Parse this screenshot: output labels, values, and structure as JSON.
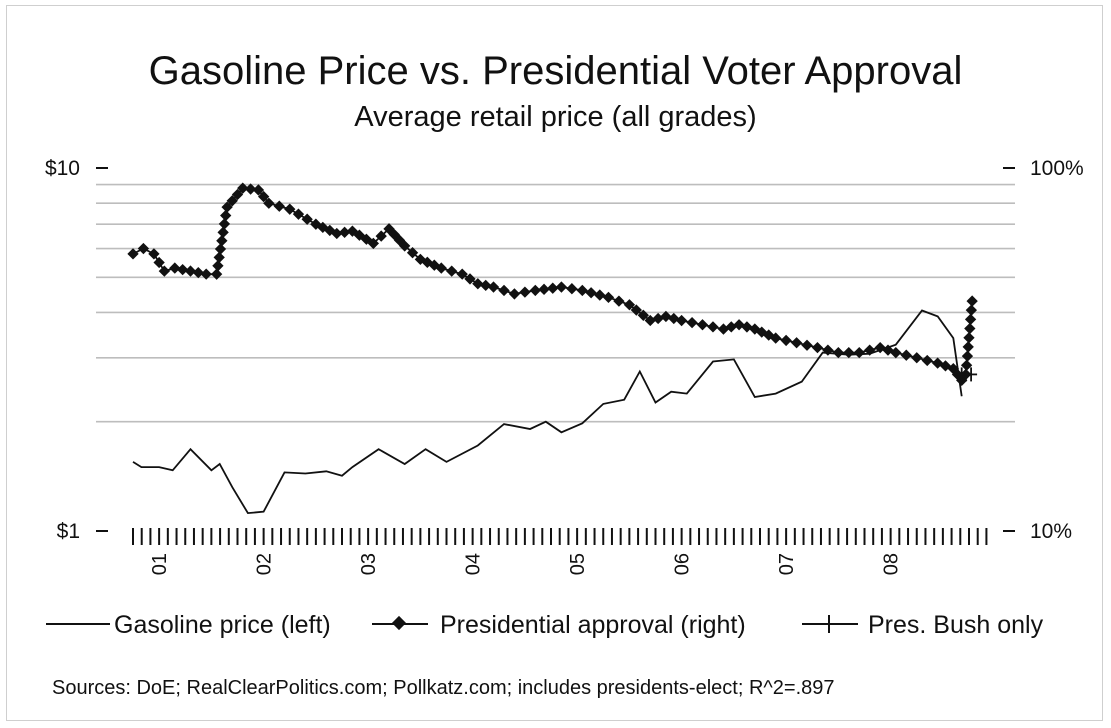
{
  "chart_data": {
    "type": "line",
    "title": "Gasoline Price vs. Presidential Voter Approval",
    "subtitle": "Average retail price (all grades)",
    "y_left": {
      "scale": "log",
      "range": [
        1,
        10
      ],
      "ticks": [
        "$1",
        "$10"
      ]
    },
    "y_right": {
      "scale": "log",
      "range": [
        10,
        100
      ],
      "ticks": [
        "10%",
        "100%"
      ]
    },
    "x": {
      "range": [
        2000.75,
        2008.95
      ],
      "year_labels": [
        "01",
        "02",
        "03",
        "04",
        "05",
        "06",
        "07",
        "08"
      ]
    },
    "grid": true,
    "legend_position": "bottom",
    "series": [
      {
        "name": "Gasoline price (left)",
        "axis": "left",
        "marker": "none",
        "points": [
          [
            2000.75,
            1.55
          ],
          [
            2000.83,
            1.5
          ],
          [
            2001.0,
            1.5
          ],
          [
            2001.13,
            1.47
          ],
          [
            2001.3,
            1.68
          ],
          [
            2001.5,
            1.47
          ],
          [
            2001.58,
            1.53
          ],
          [
            2001.7,
            1.32
          ],
          [
            2001.85,
            1.12
          ],
          [
            2002.0,
            1.13
          ],
          [
            2002.2,
            1.45
          ],
          [
            2002.4,
            1.44
          ],
          [
            2002.6,
            1.46
          ],
          [
            2002.75,
            1.42
          ],
          [
            2002.85,
            1.5
          ],
          [
            2003.1,
            1.68
          ],
          [
            2003.35,
            1.53
          ],
          [
            2003.55,
            1.68
          ],
          [
            2003.75,
            1.55
          ],
          [
            2004.05,
            1.72
          ],
          [
            2004.3,
            1.97
          ],
          [
            2004.55,
            1.91
          ],
          [
            2004.7,
            2.0
          ],
          [
            2004.85,
            1.87
          ],
          [
            2005.05,
            1.98
          ],
          [
            2005.25,
            2.24
          ],
          [
            2005.45,
            2.3
          ],
          [
            2005.6,
            2.75
          ],
          [
            2005.75,
            2.26
          ],
          [
            2005.9,
            2.42
          ],
          [
            2006.05,
            2.39
          ],
          [
            2006.3,
            2.93
          ],
          [
            2006.5,
            2.97
          ],
          [
            2006.7,
            2.34
          ],
          [
            2006.9,
            2.39
          ],
          [
            2007.15,
            2.58
          ],
          [
            2007.35,
            3.1
          ],
          [
            2007.6,
            3.06
          ],
          [
            2007.8,
            3.08
          ],
          [
            2008.05,
            3.26
          ],
          [
            2008.3,
            4.05
          ],
          [
            2008.45,
            3.9
          ],
          [
            2008.6,
            3.4
          ],
          [
            2008.68,
            2.35
          ]
        ]
      },
      {
        "name": "Presidential approval (right)",
        "axis": "right",
        "marker": "diamond",
        "points": [
          [
            2000.75,
            58
          ],
          [
            2000.85,
            60
          ],
          [
            2000.95,
            58
          ],
          [
            2001.05,
            52
          ],
          [
            2001.15,
            53
          ],
          [
            2001.3,
            52
          ],
          [
            2001.45,
            51
          ],
          [
            2001.55,
            51
          ],
          [
            2001.65,
            78
          ],
          [
            2001.8,
            88
          ],
          [
            2001.95,
            87
          ],
          [
            2002.05,
            80
          ],
          [
            2002.25,
            77
          ],
          [
            2002.5,
            70
          ],
          [
            2002.7,
            66
          ],
          [
            2002.85,
            67
          ],
          [
            2003.05,
            62
          ],
          [
            2003.2,
            68
          ],
          [
            2003.35,
            61
          ],
          [
            2003.5,
            56
          ],
          [
            2003.7,
            53
          ],
          [
            2003.9,
            51
          ],
          [
            2004.05,
            48
          ],
          [
            2004.2,
            47
          ],
          [
            2004.4,
            45
          ],
          [
            2004.6,
            46
          ],
          [
            2004.85,
            47
          ],
          [
            2005.05,
            46
          ],
          [
            2005.3,
            44
          ],
          [
            2005.5,
            42
          ],
          [
            2005.7,
            38
          ],
          [
            2005.85,
            39
          ],
          [
            2006.0,
            38
          ],
          [
            2006.2,
            37
          ],
          [
            2006.4,
            36
          ],
          [
            2006.55,
            37
          ],
          [
            2006.7,
            36
          ],
          [
            2006.9,
            34
          ],
          [
            2007.1,
            33
          ],
          [
            2007.3,
            32
          ],
          [
            2007.5,
            31
          ],
          [
            2007.7,
            31
          ],
          [
            2007.9,
            32
          ],
          [
            2008.05,
            31
          ],
          [
            2008.25,
            30
          ],
          [
            2008.45,
            29
          ],
          [
            2008.6,
            28
          ],
          [
            2008.68,
            26
          ],
          [
            2008.72,
            27
          ],
          [
            2008.78,
            43
          ]
        ]
      },
      {
        "name": "Pres. Bush only",
        "axis": "right",
        "marker": "plus",
        "points": [
          [
            2008.68,
            27
          ],
          [
            2008.72,
            27
          ],
          [
            2008.77,
            27
          ]
        ]
      }
    ]
  },
  "legend": {
    "gas": "Gasoline price (left)",
    "approval": "Presidential approval (right)",
    "bush": "Pres. Bush only"
  },
  "sources": "Sources: DoE; RealClearPolitics.com; Pollkatz.com; includes presidents-elect; R^2=.897"
}
